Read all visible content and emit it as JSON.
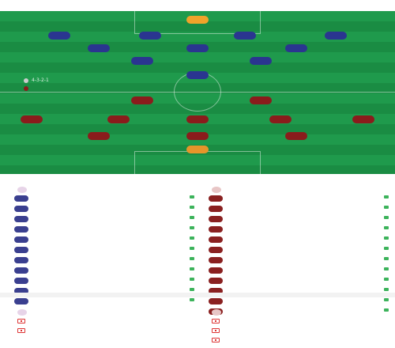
{
  "header": {
    "title": "",
    "subtitle": ""
  },
  "pitch": {
    "home_team_name": "",
    "away_team_name": "",
    "home_coach": "",
    "away_coach": "",
    "home_formation": "4-3-2-1",
    "away_formation": "",
    "center_label": "",
    "home_side_info": "",
    "away_side_info": "",
    "colors": {
      "home": "#2a3590",
      "away": "#8a1c1c",
      "home_gk": "#f0a32a",
      "away_gk": "#e6952a"
    },
    "home_players": [
      {
        "num": "",
        "name": "",
        "tag": ""
      },
      {
        "num": "",
        "name": "",
        "tag": ""
      },
      {
        "num": "",
        "name": "",
        "tag": ""
      },
      {
        "num": "",
        "name": "",
        "tag": ""
      },
      {
        "num": "",
        "name": "",
        "tag": ""
      },
      {
        "num": "",
        "name": "",
        "tag": ""
      },
      {
        "num": "",
        "name": "",
        "tag": ""
      },
      {
        "num": "",
        "name": "",
        "tag": ""
      },
      {
        "num": "",
        "name": "",
        "tag": ""
      },
      {
        "num": "",
        "name": "",
        "tag": ""
      },
      {
        "num": "",
        "name": "",
        "tag": ""
      }
    ],
    "away_players": [
      {
        "num": "",
        "name": "",
        "tag": ""
      },
      {
        "num": "",
        "name": "",
        "tag": ""
      },
      {
        "num": "",
        "name": "",
        "tag": ""
      },
      {
        "num": "",
        "name": "",
        "tag": ""
      },
      {
        "num": "",
        "name": "",
        "tag": ""
      },
      {
        "num": "",
        "name": "",
        "tag": ""
      },
      {
        "num": "",
        "name": "",
        "tag": ""
      },
      {
        "num": "",
        "name": "",
        "tag": ""
      },
      {
        "num": "",
        "name": "",
        "tag": ""
      },
      {
        "num": "",
        "name": "",
        "tag": ""
      },
      {
        "num": "",
        "name": "",
        "tag": ""
      }
    ]
  },
  "subs": {
    "title": "",
    "home_team_name": "",
    "away_team_name": "",
    "home": [
      {
        "num": "",
        "name": "",
        "pos": "",
        "evt": ""
      },
      {
        "num": "",
        "name": "",
        "pos": "",
        "evt": ""
      },
      {
        "num": "",
        "name": "",
        "pos": "",
        "evt": ""
      },
      {
        "num": "",
        "name": "",
        "pos": "",
        "evt": ""
      },
      {
        "num": "",
        "name": "",
        "pos": "",
        "evt": ""
      },
      {
        "num": "",
        "name": "",
        "pos": "",
        "evt": ""
      },
      {
        "num": "",
        "name": "",
        "pos": "",
        "evt": ""
      },
      {
        "num": "",
        "name": "",
        "pos": "",
        "evt": ""
      },
      {
        "num": "",
        "name": "",
        "pos": "",
        "evt": ""
      },
      {
        "num": "",
        "name": "",
        "pos": "",
        "evt": ""
      },
      {
        "num": "",
        "name": "",
        "pos": "",
        "evt": ""
      }
    ],
    "away": [
      {
        "num": "",
        "name": "",
        "pos": "",
        "evt": ""
      },
      {
        "num": "",
        "name": "",
        "pos": "",
        "evt": ""
      },
      {
        "num": "",
        "name": "",
        "pos": "",
        "evt": ""
      },
      {
        "num": "",
        "name": "",
        "pos": "",
        "evt": ""
      },
      {
        "num": "",
        "name": "",
        "pos": "",
        "evt": ""
      },
      {
        "num": "",
        "name": "",
        "pos": "",
        "evt": ""
      },
      {
        "num": "",
        "name": "",
        "pos": "",
        "evt": ""
      },
      {
        "num": "",
        "name": "",
        "pos": "",
        "evt": ""
      },
      {
        "num": "",
        "name": "",
        "pos": "",
        "evt": ""
      },
      {
        "num": "",
        "name": "",
        "pos": "",
        "evt": ""
      },
      {
        "num": "",
        "name": "",
        "pos": "",
        "evt": ""
      },
      {
        "num": "",
        "name": "",
        "pos": "",
        "evt": ""
      }
    ]
  },
  "injuries": {
    "title": "",
    "home_team_name": "",
    "away_team_name": "",
    "home": [
      {
        "name": "",
        "pos": ""
      },
      {
        "name": "",
        "pos": ""
      }
    ],
    "away": [
      {
        "name": "",
        "pos": ""
      },
      {
        "name": "",
        "pos": ""
      },
      {
        "name": "",
        "pos": ""
      }
    ]
  }
}
